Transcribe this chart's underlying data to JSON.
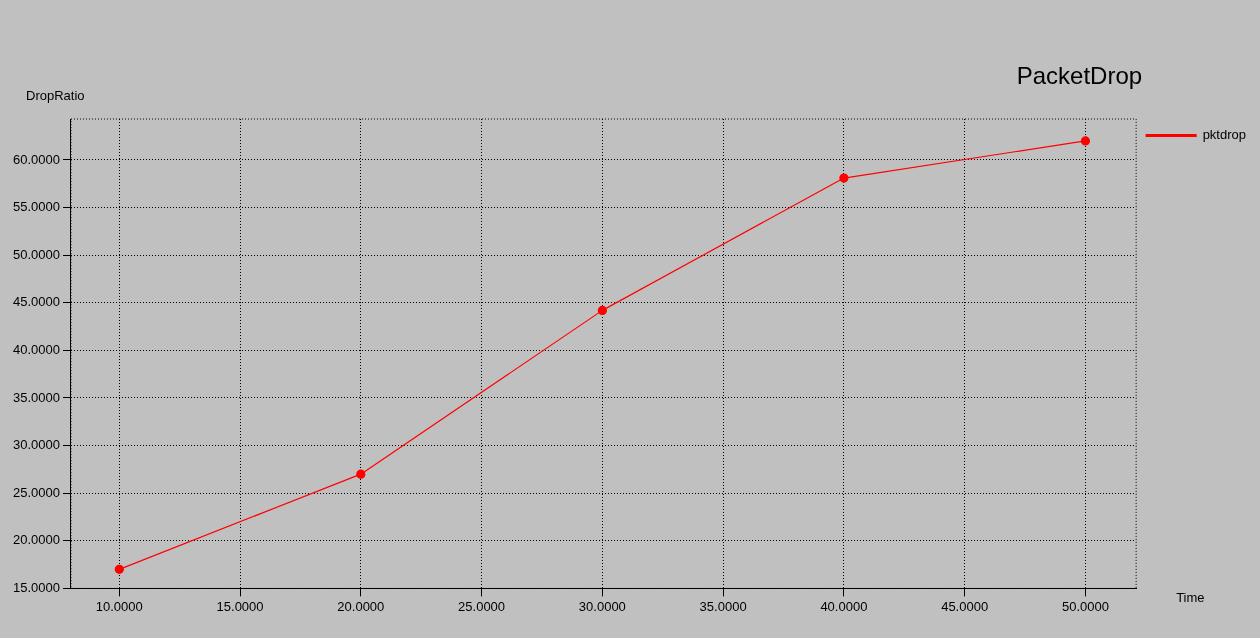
{
  "chart_data": {
    "type": "line",
    "title": "PacketDrop",
    "xlabel": "Time",
    "ylabel": "DropRatio",
    "x": [
      10,
      20,
      30,
      40,
      50
    ],
    "series": [
      {
        "name": "pktdrop",
        "color": "#ff0000",
        "values": [
          17.0,
          27.0,
          44.2,
          58.1,
          62.0
        ]
      }
    ],
    "xlim": [
      8.0,
      52.1
    ],
    "ylim": [
      15,
      64.3
    ],
    "xticks": [
      {
        "value": 10,
        "label": "10.0000"
      },
      {
        "value": 15,
        "label": "15.0000"
      },
      {
        "value": 20,
        "label": "20.0000"
      },
      {
        "value": 25,
        "label": "25.0000"
      },
      {
        "value": 30,
        "label": "30.0000"
      },
      {
        "value": 35,
        "label": "35.0000"
      },
      {
        "value": 40,
        "label": "40.0000"
      },
      {
        "value": 45,
        "label": "45.0000"
      },
      {
        "value": 50,
        "label": "50.0000"
      }
    ],
    "yticks": [
      {
        "value": 15,
        "label": "15.0000"
      },
      {
        "value": 20,
        "label": "20.0000"
      },
      {
        "value": 25,
        "label": "25.0000"
      },
      {
        "value": 30,
        "label": "30.0000"
      },
      {
        "value": 35,
        "label": "35.0000"
      },
      {
        "value": 40,
        "label": "40.0000"
      },
      {
        "value": 45,
        "label": "45.0000"
      },
      {
        "value": 50,
        "label": "50.0000"
      },
      {
        "value": 55,
        "label": "55.0000"
      },
      {
        "value": 60,
        "label": "60.0000"
      }
    ],
    "grid": true,
    "legend": "top right",
    "marker": "circle",
    "line_style": "solid"
  }
}
